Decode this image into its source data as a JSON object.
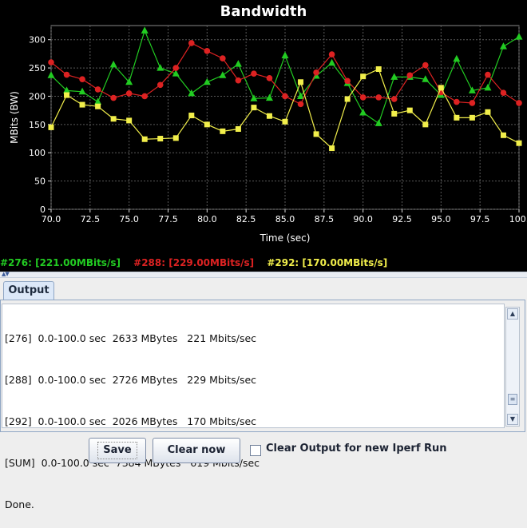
{
  "chart_data": {
    "type": "line",
    "title": "Bandwidth",
    "xlabel": "Time (sec)",
    "ylabel": "MBits (BW)",
    "xlim": [
      70,
      100
    ],
    "ylim": [
      0,
      325
    ],
    "x_ticks": [
      70.0,
      72.5,
      75.0,
      77.5,
      80.0,
      82.5,
      85.0,
      87.5,
      90.0,
      92.5,
      95.0,
      97.5,
      100.0
    ],
    "x_tick_labels": [
      "70.0",
      "72.5",
      "75.0",
      "77.5",
      "80.0",
      "82.5",
      "85.0",
      "87.5",
      "90.0",
      "92.5",
      "95.0",
      "97.5",
      "100."
    ],
    "y_ticks": [
      0,
      50,
      100,
      150,
      200,
      250,
      300
    ],
    "grid": true,
    "background": "#000000",
    "x": [
      70,
      71,
      72,
      73,
      74,
      75,
      76,
      77,
      78,
      79,
      80,
      81,
      82,
      83,
      84,
      85,
      86,
      87,
      88,
      89,
      90,
      91,
      92,
      93,
      94,
      95,
      96,
      97,
      98,
      99,
      100
    ],
    "series": [
      {
        "name": "#276",
        "color": "#22cc22",
        "marker": "triangle",
        "values": [
          237,
          210,
          208,
          190,
          256,
          225,
          316,
          250,
          240,
          205,
          225,
          237,
          257,
          196,
          197,
          272,
          200,
          236,
          259,
          223,
          171,
          152,
          234,
          234,
          230,
          202,
          266,
          210,
          215,
          288,
          305
        ]
      },
      {
        "name": "#288",
        "color": "#dd2222",
        "marker": "circle",
        "values": [
          260,
          238,
          230,
          212,
          197,
          205,
          200,
          220,
          250,
          294,
          280,
          267,
          228,
          240,
          232,
          200,
          186,
          242,
          274,
          227,
          198,
          198,
          195,
          237,
          255,
          207,
          190,
          188,
          238,
          206,
          188
        ]
      },
      {
        "name": "#292",
        "color": "#f2ef4b",
        "marker": "square",
        "values": [
          145,
          202,
          185,
          182,
          160,
          157,
          124,
          125,
          126,
          166,
          150,
          138,
          142,
          180,
          165,
          155,
          225,
          133,
          108,
          195,
          235,
          248,
          169,
          175,
          150,
          215,
          162,
          162,
          172,
          131,
          117
        ]
      }
    ]
  },
  "legend": [
    {
      "text": "#276: [221.00MBits/s]",
      "color": "#22cc22"
    },
    {
      "text": "#288: [229.00MBits/s]",
      "color": "#dd2222"
    },
    {
      "text": "#292: [170.00MBits/s]",
      "color": "#f2ef4b"
    }
  ],
  "output": {
    "tab_label": "Output",
    "lines": [
      "[276]  0.0-100.0 sec  2633 MBytes   221 Mbits/sec",
      "[288]  0.0-100.0 sec  2726 MBytes   229 Mbits/sec",
      "[292]  0.0-100.0 sec  2026 MBytes   170 Mbits/sec",
      "[SUM]  0.0-100.0 sec  7384 MBytes   619 Mbits/sec",
      "Done."
    ]
  },
  "buttons": {
    "save_label": "Save",
    "clear_now_label": "Clear now",
    "clear_checkbox_label": "Clear Output for new Iperf Run",
    "clear_checkbox_checked": false
  }
}
